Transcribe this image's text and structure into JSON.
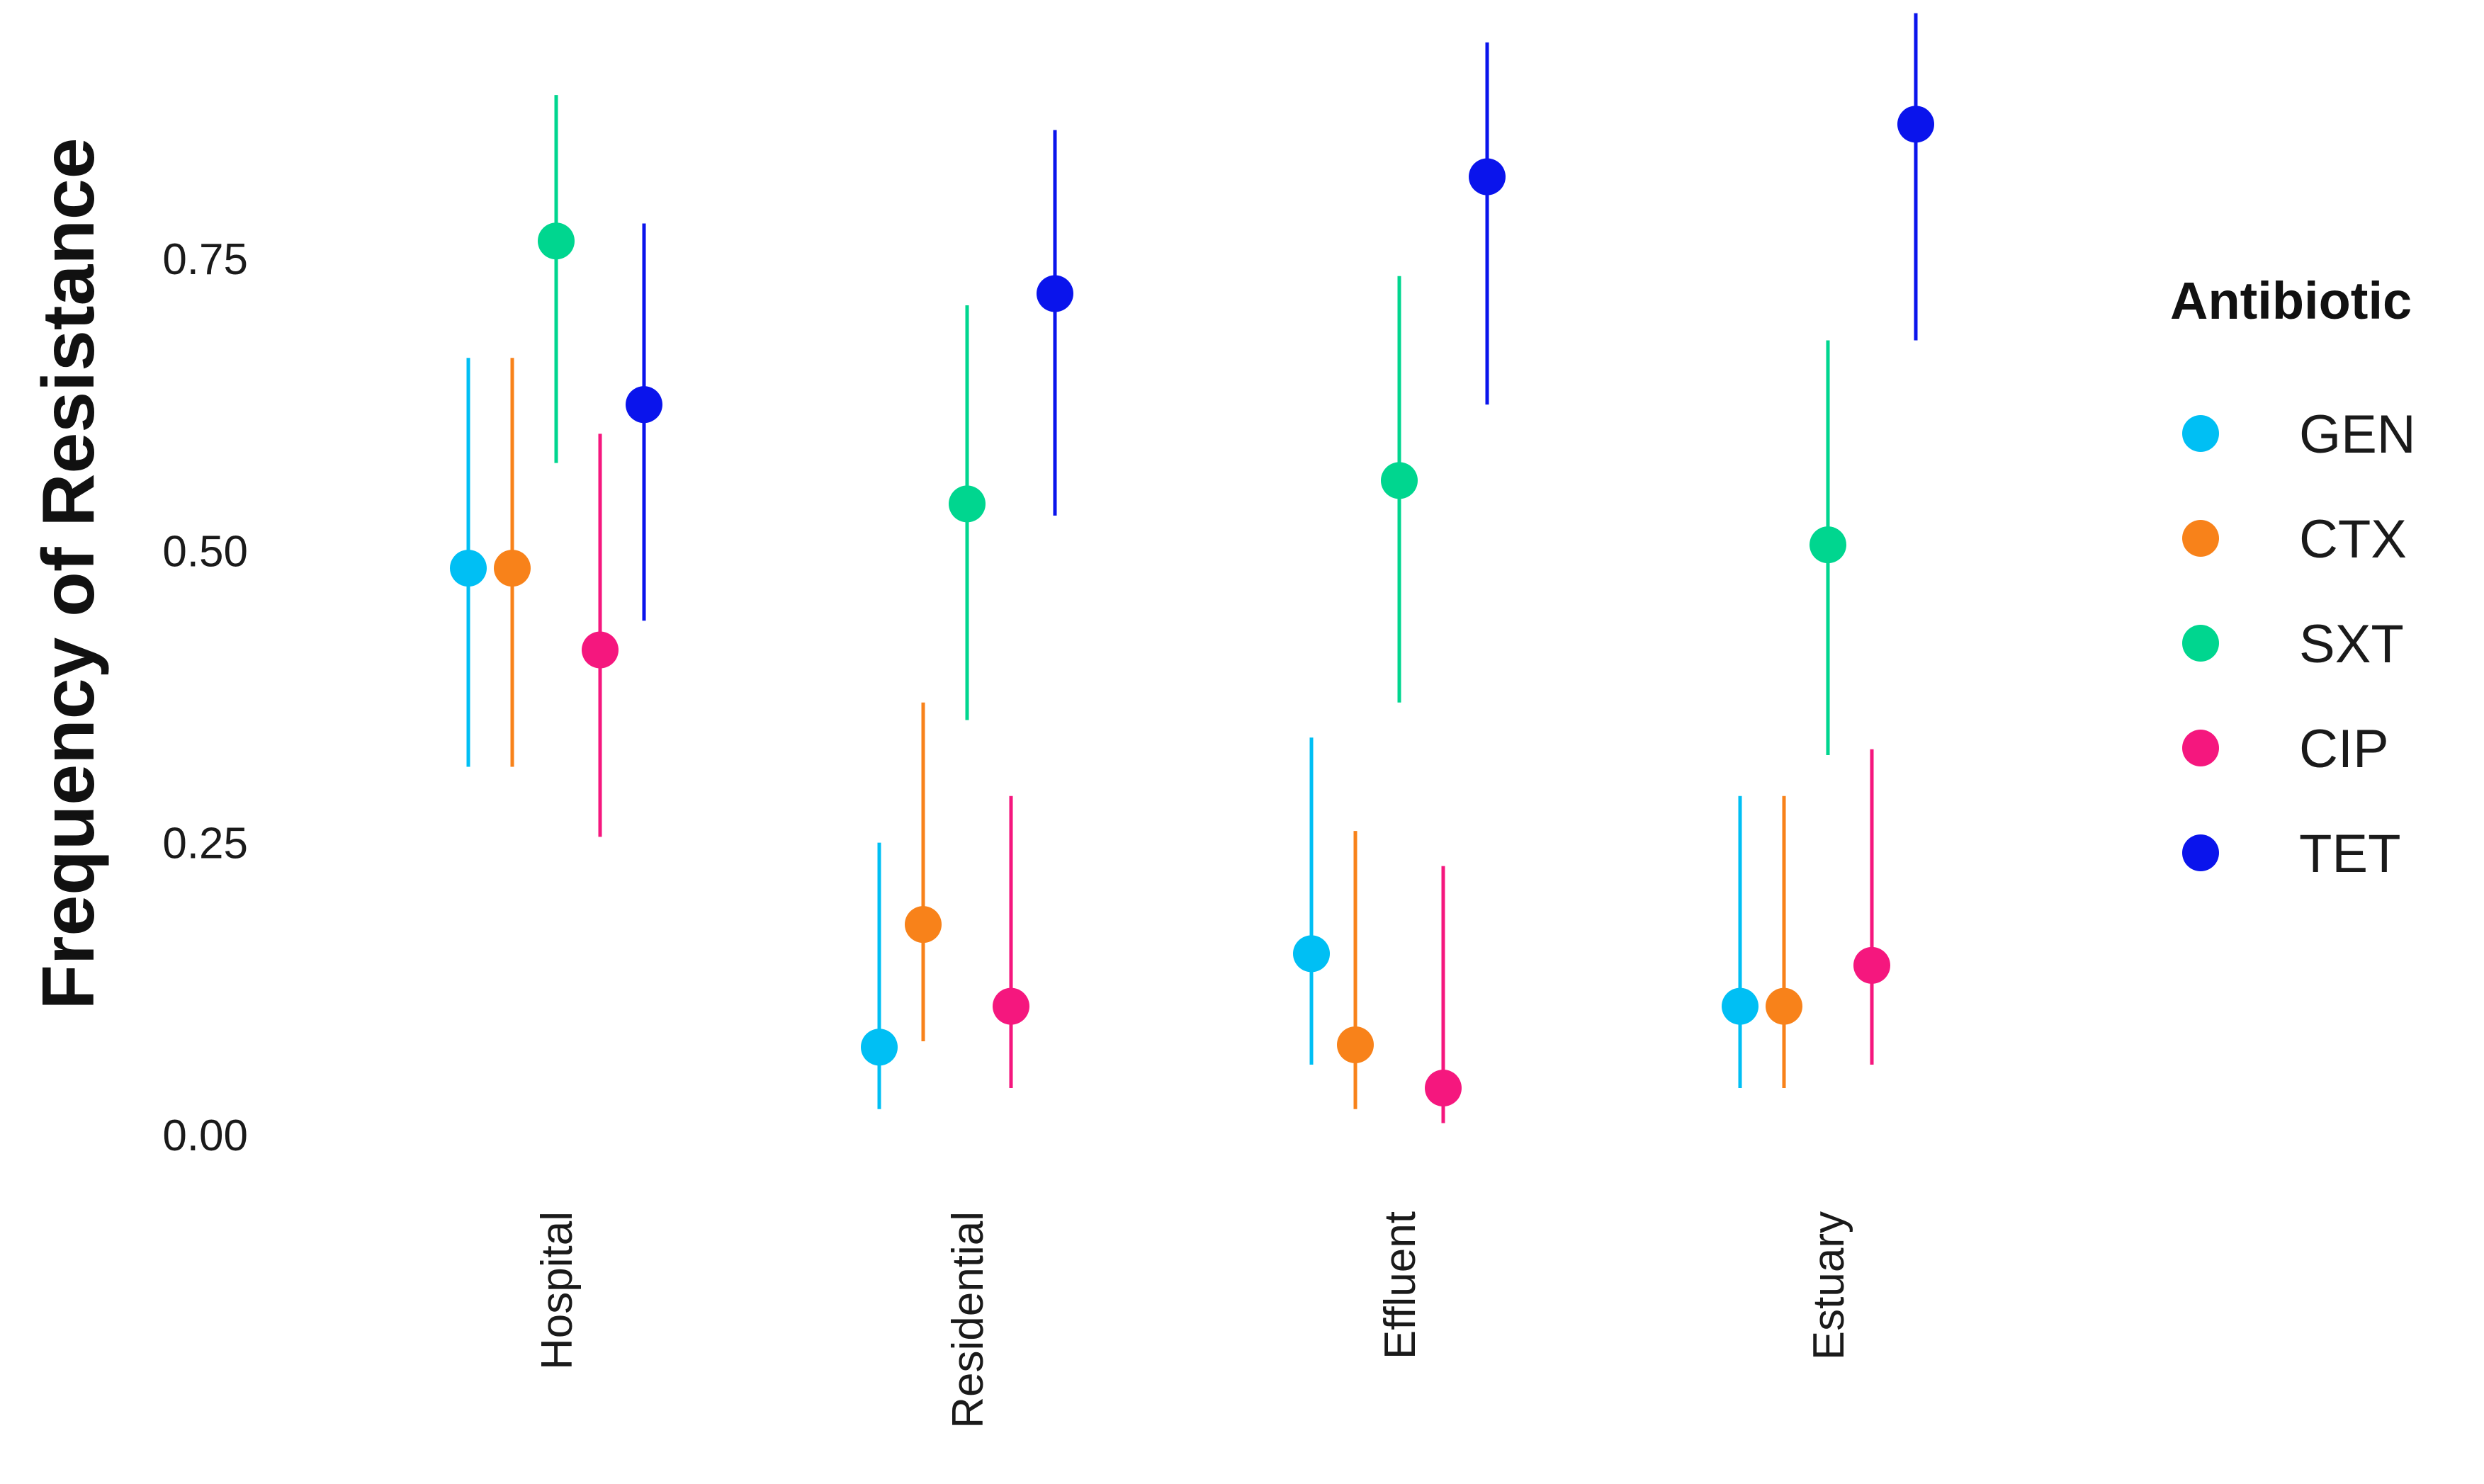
{
  "chart_data": {
    "type": "scatter",
    "subtype": "pointrange",
    "title": "",
    "xlabel": "",
    "ylabel": "Frequency of Resistance",
    "ylim": [
      0,
      0.95
    ],
    "yticks": [
      {
        "value": 0.0,
        "label": "0.00"
      },
      {
        "value": 0.25,
        "label": "0.25"
      },
      {
        "value": 0.5,
        "label": "0.50"
      },
      {
        "value": 0.75,
        "label": "0.75"
      }
    ],
    "grid": false,
    "categories": [
      "Hospital",
      "Residential",
      "Effluent",
      "Estuary"
    ],
    "legend": {
      "title": "Antibiotic",
      "position": "right"
    },
    "series": [
      {
        "name": "GEN",
        "color": "#00BFF4",
        "values": [
          0.485,
          0.075,
          0.155,
          0.11
        ],
        "lower": [
          0.315,
          0.022,
          0.06,
          0.04
        ],
        "upper": [
          0.665,
          0.25,
          0.34,
          0.29
        ]
      },
      {
        "name": "CTX",
        "color": "#F8821A",
        "values": [
          0.485,
          0.18,
          0.077,
          0.11
        ],
        "lower": [
          0.315,
          0.08,
          0.022,
          0.04
        ],
        "upper": [
          0.665,
          0.37,
          0.26,
          0.29
        ]
      },
      {
        "name": "SXT",
        "color": "#00D68F",
        "values": [
          0.765,
          0.54,
          0.56,
          0.505
        ],
        "lower": [
          0.575,
          0.355,
          0.37,
          0.325
        ],
        "upper": [
          0.89,
          0.71,
          0.735,
          0.68
        ]
      },
      {
        "name": "CIP",
        "color": "#F5177E",
        "values": [
          0.415,
          0.11,
          0.04,
          0.145
        ],
        "lower": [
          0.255,
          0.04,
          0.01,
          0.06
        ],
        "upper": [
          0.6,
          0.29,
          0.23,
          0.33
        ]
      },
      {
        "name": "TET",
        "color": "#0A14EC",
        "values": [
          0.625,
          0.72,
          0.82,
          0.865
        ],
        "lower": [
          0.44,
          0.53,
          0.625,
          0.68
        ],
        "upper": [
          0.78,
          0.86,
          0.935,
          0.96
        ]
      }
    ]
  }
}
